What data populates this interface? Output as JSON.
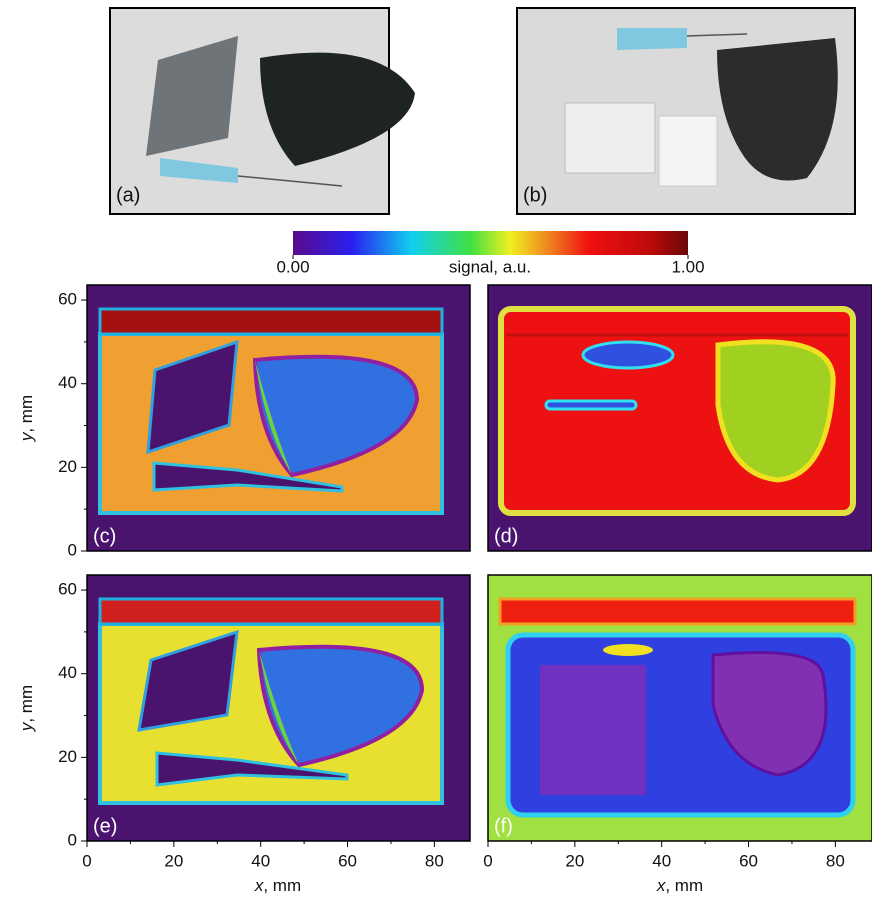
{
  "photos": [
    {
      "label": "(a)"
    },
    {
      "label": "(b)"
    }
  ],
  "colorbar": {
    "label": "signal, a.u.",
    "lim": [
      0,
      1
    ],
    "ticks": [
      {
        "value": 0,
        "label": "0.00"
      },
      {
        "value": 1,
        "label": "1.00"
      }
    ]
  },
  "maps": [
    {
      "label": "(c)"
    },
    {
      "label": "(d)"
    },
    {
      "label": "(e)"
    },
    {
      "label": "(f)"
    }
  ],
  "axes": {
    "xlabel": {
      "var": "x",
      "unit": ", mm"
    },
    "ylabel": {
      "var": "y",
      "unit": ", mm"
    },
    "xlim": [
      0,
      88.2
    ],
    "ylim": [
      0,
      63.6
    ],
    "xticks": [
      0,
      20,
      40,
      60,
      80
    ],
    "yticks": [
      0,
      20,
      40,
      60
    ]
  }
}
